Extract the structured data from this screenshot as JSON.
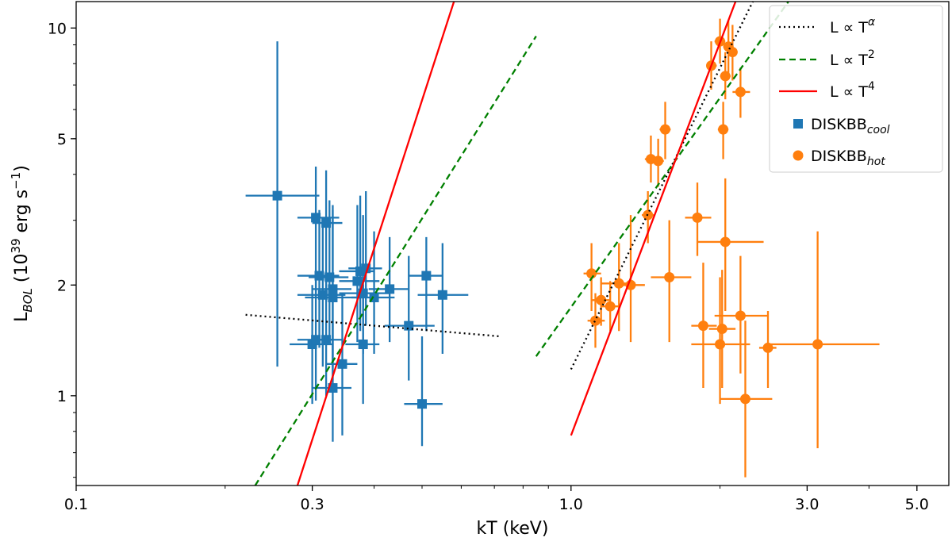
{
  "chart_data": {
    "type": "scatter",
    "title": "",
    "xlabel": "kT (keV)",
    "ylabel_main": "L",
    "ylabel_sub": "BOL",
    "ylabel_rest": " (10",
    "ylabel_sup": "39",
    "ylabel_tail": " erg s",
    "ylabel_sup2": "−1",
    "ylabel_close": ")",
    "xscale": "log",
    "yscale": "log",
    "xlim": [
      0.1,
      5.8
    ],
    "ylim": [
      0.57,
      11.8
    ],
    "xticks": [
      {
        "value": 0.1,
        "label": "0.1"
      },
      {
        "value": 0.3,
        "label": "0.3"
      },
      {
        "value": 1.0,
        "label": "1.0"
      },
      {
        "value": 3.0,
        "label": "3.0"
      },
      {
        "value": 5.0,
        "label": "5.0"
      }
    ],
    "yticks": [
      {
        "value": 1,
        "label": "1"
      },
      {
        "value": 2,
        "label": "2"
      },
      {
        "value": 5,
        "label": "5"
      },
      {
        "value": 10,
        "label": "10"
      }
    ],
    "grid": false,
    "legend_position": "top-right",
    "legend": [
      {
        "id": "alpha",
        "main": "L ∝ T",
        "sup": "α",
        "style": "dotted",
        "color": "#000000"
      },
      {
        "id": "t2",
        "main": "L ∝ T",
        "sup": "2",
        "style": "dashed",
        "color": "#008000"
      },
      {
        "id": "t4",
        "main": "L ∝ T",
        "sup": "4",
        "style": "solid",
        "color": "#ff0000"
      },
      {
        "id": "cool",
        "main": "DISKBB",
        "sub": "cool",
        "style": "square",
        "color": "#1f77b4"
      },
      {
        "id": "hot",
        "main": "DISKBB",
        "sub": "hot",
        "style": "circle",
        "color": "#ff7f0e"
      }
    ],
    "lines": [
      {
        "name": "cool L∝T^α",
        "style": "dotted",
        "color": "#000000",
        "x": [
          0.22,
          0.72
        ],
        "y": [
          1.66,
          1.45
        ]
      },
      {
        "name": "cool L∝T^2",
        "style": "dashed",
        "color": "#008000",
        "x": [
          0.23,
          0.85
        ],
        "y": [
          0.57,
          9.5
        ]
      },
      {
        "name": "cool L∝T^4",
        "style": "solid",
        "color": "#ff0000",
        "x": [
          0.28,
          0.58
        ],
        "y": [
          0.57,
          11.8
        ]
      },
      {
        "name": "hot L∝T^α",
        "style": "dotted",
        "color": "#000000",
        "x": [
          1.0,
          2.33
        ],
        "y": [
          1.18,
          11.8
        ]
      },
      {
        "name": "hot L∝T^2",
        "style": "dashed",
        "color": "#008000",
        "x": [
          0.85,
          2.75
        ],
        "y": [
          1.28,
          11.8
        ]
      },
      {
        "name": "hot L∝T^4",
        "style": "solid",
        "color": "#ff0000",
        "x": [
          1.0,
          2.15
        ],
        "y": [
          0.78,
          11.8
        ]
      }
    ],
    "series": [
      {
        "name": "DISKBB cool",
        "marker": "square",
        "color": "#1f77b4",
        "points": [
          {
            "x": 0.255,
            "y": 3.5,
            "xerr": [
              0.22,
              0.31
            ],
            "yerr": [
              1.2,
              9.2
            ]
          },
          {
            "x": 0.305,
            "y": 3.05,
            "xerr": [
              0.28,
              0.34
            ],
            "yerr": [
              1.9,
              4.2
            ]
          },
          {
            "x": 0.32,
            "y": 2.95,
            "xerr": [
              0.3,
              0.345
            ],
            "yerr": [
              1.8,
              4.1
            ]
          },
          {
            "x": 0.31,
            "y": 2.12,
            "xerr": [
              0.28,
              0.34
            ],
            "yerr": [
              1.35,
              3.2
            ]
          },
          {
            "x": 0.325,
            "y": 2.1,
            "xerr": [
              0.295,
              0.355
            ],
            "yerr": [
              1.4,
              3.4
            ]
          },
          {
            "x": 0.33,
            "y": 1.95,
            "xerr": [
              0.3,
              0.36
            ],
            "yerr": [
              1.2,
              3.2
            ]
          },
          {
            "x": 0.315,
            "y": 1.88,
            "xerr": [
              0.28,
              0.35
            ],
            "yerr": [
              1.2,
              3.0
            ]
          },
          {
            "x": 0.33,
            "y": 1.85,
            "xerr": [
              0.29,
              0.38
            ],
            "yerr": [
              1.1,
              3.3
            ]
          },
          {
            "x": 0.37,
            "y": 2.05,
            "xerr": [
              0.34,
              0.41
            ],
            "yerr": [
              1.4,
              3.3
            ]
          },
          {
            "x": 0.375,
            "y": 2.18,
            "xerr": [
              0.34,
              0.4
            ],
            "yerr": [
              1.5,
              3.5
            ]
          },
          {
            "x": 0.385,
            "y": 2.22,
            "xerr": [
              0.355,
              0.415
            ],
            "yerr": [
              1.55,
              3.6
            ]
          },
          {
            "x": 0.38,
            "y": 1.9,
            "xerr": [
              0.34,
              0.43
            ],
            "yerr": [
              1.3,
              3.1
            ]
          },
          {
            "x": 0.4,
            "y": 1.85,
            "xerr": [
              0.36,
              0.44
            ],
            "yerr": [
              1.3,
              2.8
            ]
          },
          {
            "x": 0.43,
            "y": 1.95,
            "xerr": [
              0.39,
              0.47
            ],
            "yerr": [
              1.4,
              2.7
            ]
          },
          {
            "x": 0.3,
            "y": 1.38,
            "xerr": [
              0.27,
              0.33
            ],
            "yerr": [
              0.95,
              2.0
            ]
          },
          {
            "x": 0.305,
            "y": 1.42,
            "xerr": [
              0.28,
              0.33
            ],
            "yerr": [
              0.97,
              2.2
            ]
          },
          {
            "x": 0.32,
            "y": 1.42,
            "xerr": [
              0.3,
              0.345
            ],
            "yerr": [
              1.0,
              2.1
            ]
          },
          {
            "x": 0.345,
            "y": 1.22,
            "xerr": [
              0.32,
              0.37
            ],
            "yerr": [
              0.78,
              1.9
            ]
          },
          {
            "x": 0.38,
            "y": 1.38,
            "xerr": [
              0.35,
              0.41
            ],
            "yerr": [
              0.95,
              2.0
            ]
          },
          {
            "x": 0.33,
            "y": 1.05,
            "xerr": [
              0.3,
              0.36
            ],
            "yerr": [
              0.75,
              1.6
            ]
          },
          {
            "x": 0.47,
            "y": 1.55,
            "xerr": [
              0.42,
              0.53
            ],
            "yerr": [
              1.1,
              2.4
            ]
          },
          {
            "x": 0.51,
            "y": 2.12,
            "xerr": [
              0.47,
              0.55
            ],
            "yerr": [
              1.5,
              2.7
            ]
          },
          {
            "x": 0.55,
            "y": 1.88,
            "xerr": [
              0.49,
              0.62
            ],
            "yerr": [
              1.3,
              2.6
            ]
          },
          {
            "x": 0.5,
            "y": 0.95,
            "xerr": [
              0.46,
              0.55
            ],
            "yerr": [
              0.73,
              1.45
            ]
          }
        ]
      },
      {
        "name": "DISKBB hot",
        "marker": "circle",
        "color": "#ff7f0e",
        "points": [
          {
            "x": 2.0,
            "y": 9.2,
            "xerr": [
              1.95,
              2.05
            ],
            "yerr": [
              8.0,
              10.6
            ]
          },
          {
            "x": 2.08,
            "y": 8.9,
            "xerr": [
              2.03,
              2.13
            ],
            "yerr": [
              7.5,
              10.5
            ]
          },
          {
            "x": 2.12,
            "y": 8.6,
            "xerr": [
              2.07,
              2.17
            ],
            "yerr": [
              7.2,
              10.2
            ]
          },
          {
            "x": 1.92,
            "y": 7.9,
            "xerr": [
              1.88,
              1.97
            ],
            "yerr": [
              6.8,
              9.2
            ]
          },
          {
            "x": 2.05,
            "y": 7.4,
            "xerr": [
              2.0,
              2.1
            ],
            "yerr": [
              6.4,
              8.6
            ]
          },
          {
            "x": 2.2,
            "y": 6.7,
            "xerr": [
              2.12,
              2.3
            ],
            "yerr": [
              5.7,
              7.8
            ]
          },
          {
            "x": 2.03,
            "y": 5.3,
            "xerr": [
              1.98,
              2.08
            ],
            "yerr": [
              4.4,
              6.3
            ]
          },
          {
            "x": 1.55,
            "y": 5.3,
            "xerr": [
              1.51,
              1.59
            ],
            "yerr": [
              4.4,
              6.3
            ]
          },
          {
            "x": 1.45,
            "y": 4.4,
            "xerr": [
              1.41,
              1.49
            ],
            "yerr": [
              3.8,
              5.1
            ]
          },
          {
            "x": 1.5,
            "y": 4.35,
            "xerr": [
              1.46,
              1.54
            ],
            "yerr": [
              3.7,
              5.0
            ]
          },
          {
            "x": 1.43,
            "y": 3.1,
            "xerr": [
              1.39,
              1.47
            ],
            "yerr": [
              2.6,
              3.6
            ]
          },
          {
            "x": 1.8,
            "y": 3.05,
            "xerr": [
              1.7,
              1.92
            ],
            "yerr": [
              2.4,
              3.8
            ]
          },
          {
            "x": 2.05,
            "y": 2.62,
            "xerr": [
              1.8,
              2.45
            ],
            "yerr": [
              1.7,
              3.9
            ]
          },
          {
            "x": 1.1,
            "y": 2.15,
            "xerr": [
              1.06,
              1.15
            ],
            "yerr": [
              1.7,
              2.6
            ]
          },
          {
            "x": 1.25,
            "y": 2.02,
            "xerr": [
              1.15,
              1.35
            ],
            "yerr": [
              1.5,
              2.6
            ]
          },
          {
            "x": 1.32,
            "y": 2.0,
            "xerr": [
              1.25,
              1.41
            ],
            "yerr": [
              1.4,
              3.1
            ]
          },
          {
            "x": 1.58,
            "y": 2.1,
            "xerr": [
              1.45,
              1.75
            ],
            "yerr": [
              1.4,
              3.0
            ]
          },
          {
            "x": 1.15,
            "y": 1.82,
            "xerr": [
              1.1,
              1.2
            ],
            "yerr": [
              1.55,
              2.1
            ]
          },
          {
            "x": 1.2,
            "y": 1.75,
            "xerr": [
              1.15,
              1.26
            ],
            "yerr": [
              1.5,
              2.05
            ]
          },
          {
            "x": 1.12,
            "y": 1.6,
            "xerr": [
              1.08,
              1.17
            ],
            "yerr": [
              1.35,
              1.9
            ]
          },
          {
            "x": 1.85,
            "y": 1.55,
            "xerr": [
              1.75,
              1.97
            ],
            "yerr": [
              1.05,
              2.3
            ]
          },
          {
            "x": 2.02,
            "y": 1.52,
            "xerr": [
              1.9,
              2.15
            ],
            "yerr": [
              1.05,
              2.2
            ]
          },
          {
            "x": 2.2,
            "y": 1.65,
            "xerr": [
              1.95,
              2.5
            ],
            "yerr": [
              1.15,
              2.4
            ]
          },
          {
            "x": 2.0,
            "y": 1.38,
            "xerr": [
              1.75,
              2.3
            ],
            "yerr": [
              0.95,
              2.1
            ]
          },
          {
            "x": 2.5,
            "y": 1.35,
            "xerr": [
              2.4,
              2.6
            ],
            "yerr": [
              1.05,
              1.7
            ]
          },
          {
            "x": 3.15,
            "y": 1.38,
            "xerr": [
              2.5,
              4.2
            ],
            "yerr": [
              0.72,
              2.8
            ]
          },
          {
            "x": 2.25,
            "y": 0.98,
            "xerr": [
              2.0,
              2.55
            ],
            "yerr": [
              0.6,
              1.6
            ]
          }
        ]
      }
    ]
  }
}
